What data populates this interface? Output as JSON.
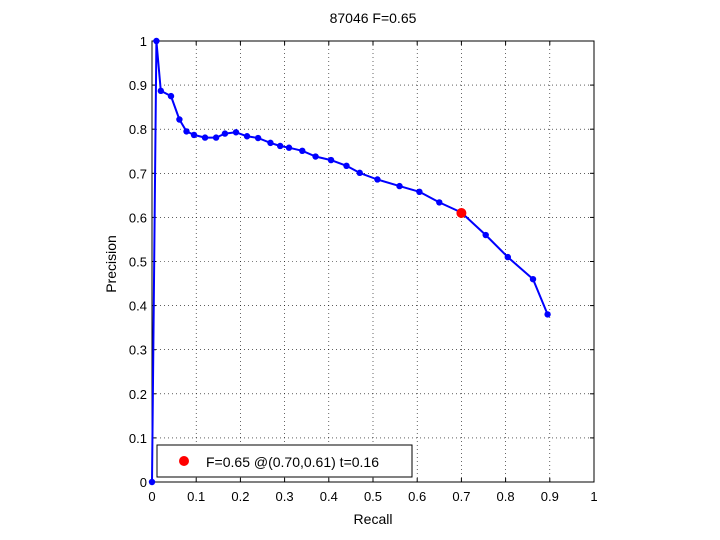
{
  "chart_data": {
    "type": "line",
    "title": "87046 F=0.65",
    "xlabel": "Recall",
    "ylabel": "Precision",
    "xlim": [
      0,
      1
    ],
    "ylim": [
      0,
      1
    ],
    "xticks": [
      "0",
      "0.1",
      "0.2",
      "0.3",
      "0.4",
      "0.5",
      "0.6",
      "0.7",
      "0.8",
      "0.9",
      "1"
    ],
    "yticks": [
      "0",
      "0.1",
      "0.2",
      "0.3",
      "0.4",
      "0.5",
      "0.6",
      "0.7",
      "0.8",
      "0.9",
      "1"
    ],
    "grid": true,
    "series": [
      {
        "color": "#0000ff",
        "x": [
          0.0,
          0.01,
          0.02,
          0.043,
          0.062,
          0.078,
          0.095,
          0.12,
          0.145,
          0.165,
          0.19,
          0.215,
          0.24,
          0.268,
          0.29,
          0.31,
          0.34,
          0.37,
          0.405,
          0.44,
          0.47,
          0.51,
          0.56,
          0.605,
          0.65,
          0.7,
          0.755,
          0.805,
          0.862,
          0.895
        ],
        "y": [
          0.0,
          1.0,
          0.887,
          0.875,
          0.822,
          0.795,
          0.787,
          0.781,
          0.781,
          0.79,
          0.793,
          0.784,
          0.78,
          0.769,
          0.762,
          0.758,
          0.751,
          0.738,
          0.73,
          0.717,
          0.701,
          0.686,
          0.671,
          0.658,
          0.634,
          0.611,
          0.56,
          0.51,
          0.46,
          0.38
        ]
      }
    ],
    "highlight": {
      "x": 0.7,
      "y": 0.61,
      "color": "#ff0000"
    },
    "legend": {
      "placement": "bottom-left",
      "entries": [
        {
          "label": "F=0.65 @(0.70,0.61) t=0.16",
          "color": "#ff0000",
          "marker": "circle"
        }
      ]
    }
  }
}
